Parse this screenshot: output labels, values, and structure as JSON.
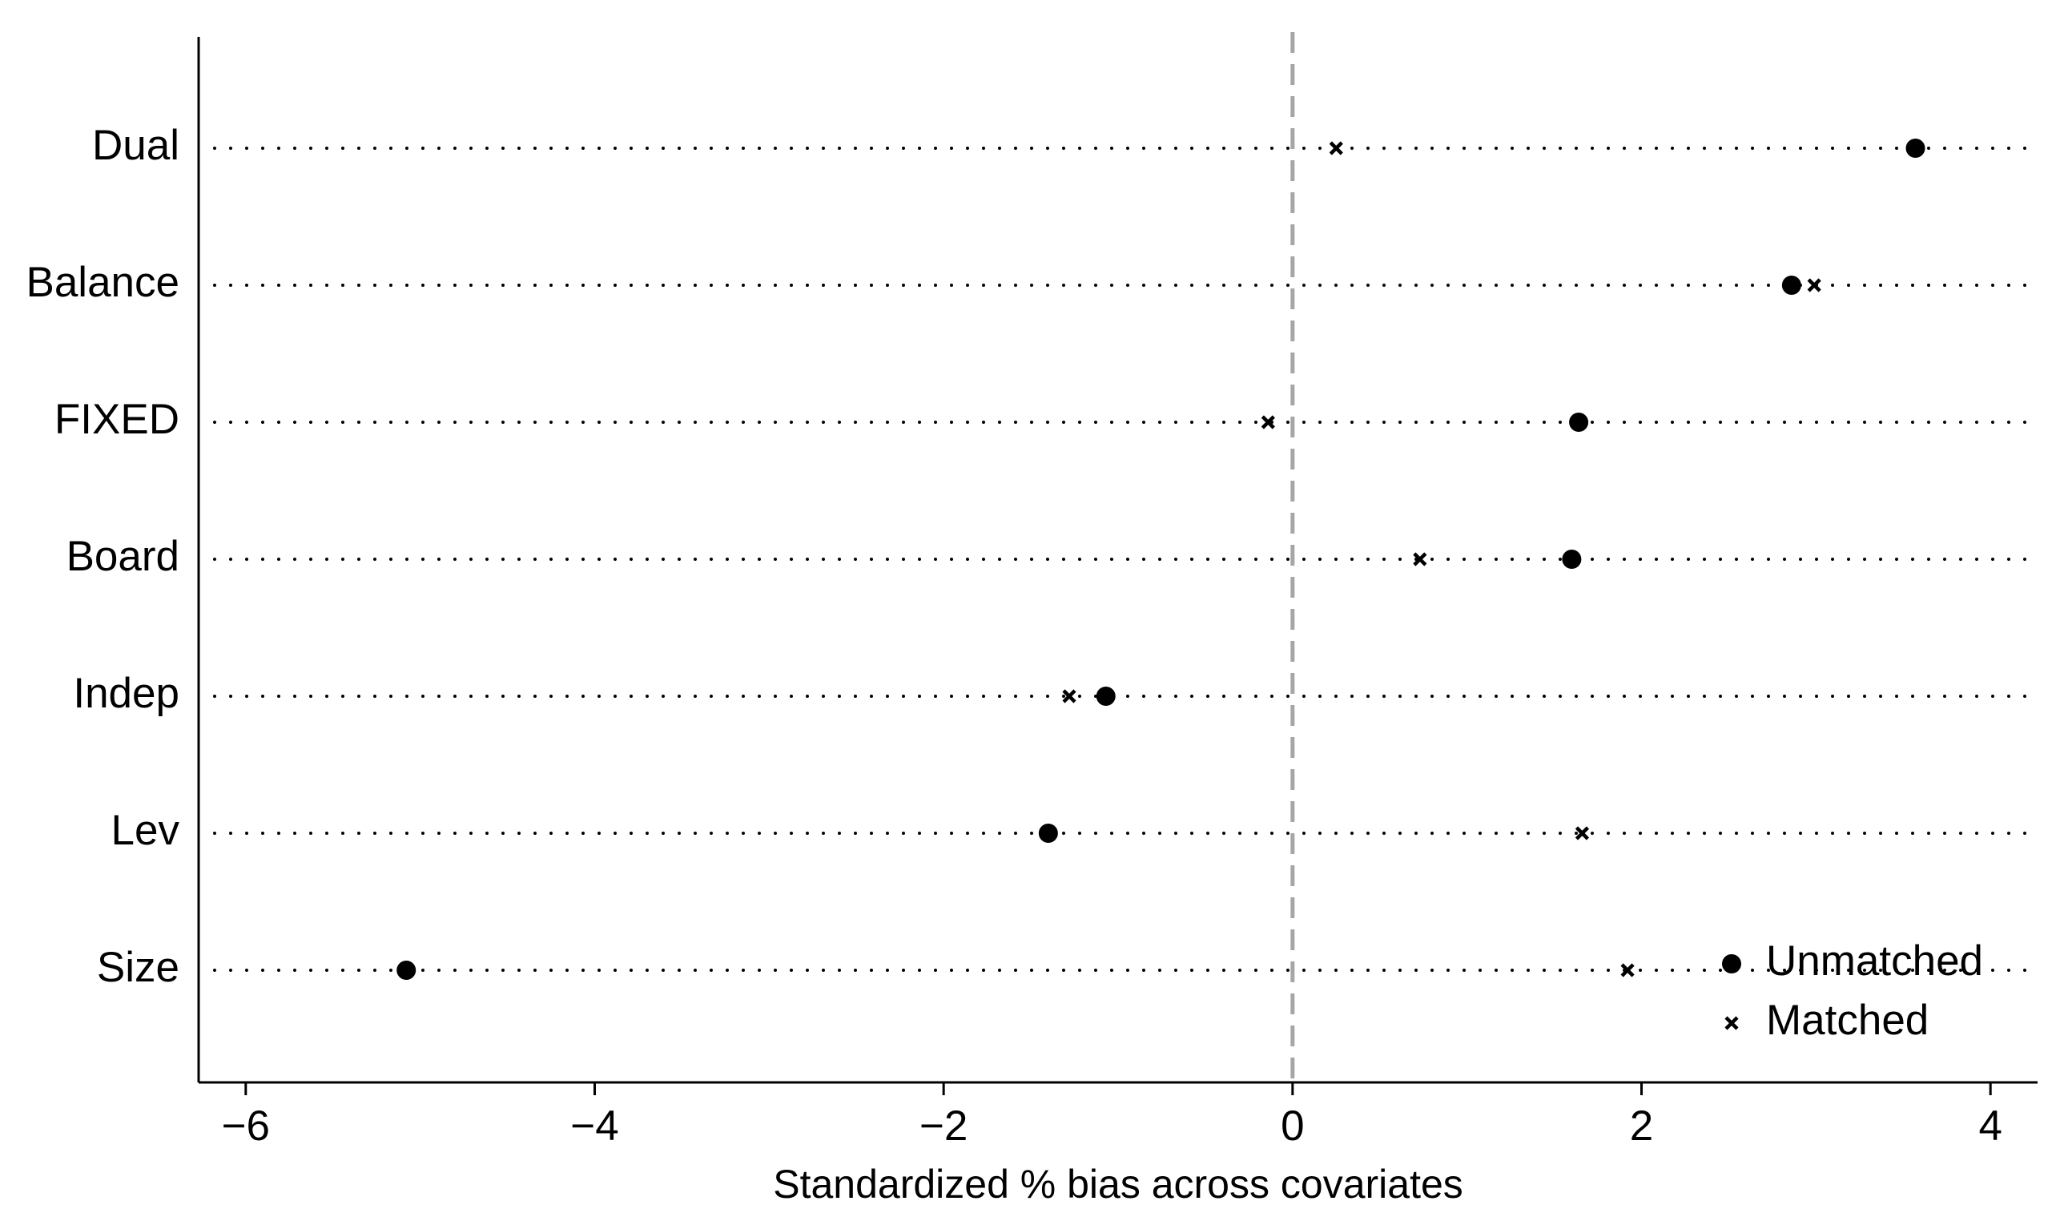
{
  "chart_data": {
    "type": "dot",
    "xlabel": "Standardized % bias across covariates",
    "categories": [
      "Dual",
      "Balance",
      "FIXED",
      "Board",
      "Indep",
      "Lev",
      "Size"
    ],
    "series": [
      {
        "name": "Unmatched",
        "color": "#000000",
        "marker": "circle",
        "values": [
          3.57,
          2.86,
          1.64,
          1.6,
          -1.07,
          -1.4,
          -5.08
        ]
      },
      {
        "name": "Matched",
        "color": "#000000",
        "marker": "x",
        "values": [
          0.25,
          2.99,
          -0.14,
          0.73,
          -1.28,
          1.66,
          1.92
        ]
      }
    ],
    "xlim": [
      -6.27,
      4.27
    ],
    "xticks": [
      {
        "value": -6,
        "label": "−6"
      },
      {
        "value": -4,
        "label": "−4"
      },
      {
        "value": -2,
        "label": "−2"
      },
      0,
      2,
      4
    ],
    "reference_line": 0,
    "legend": "lower right"
  }
}
